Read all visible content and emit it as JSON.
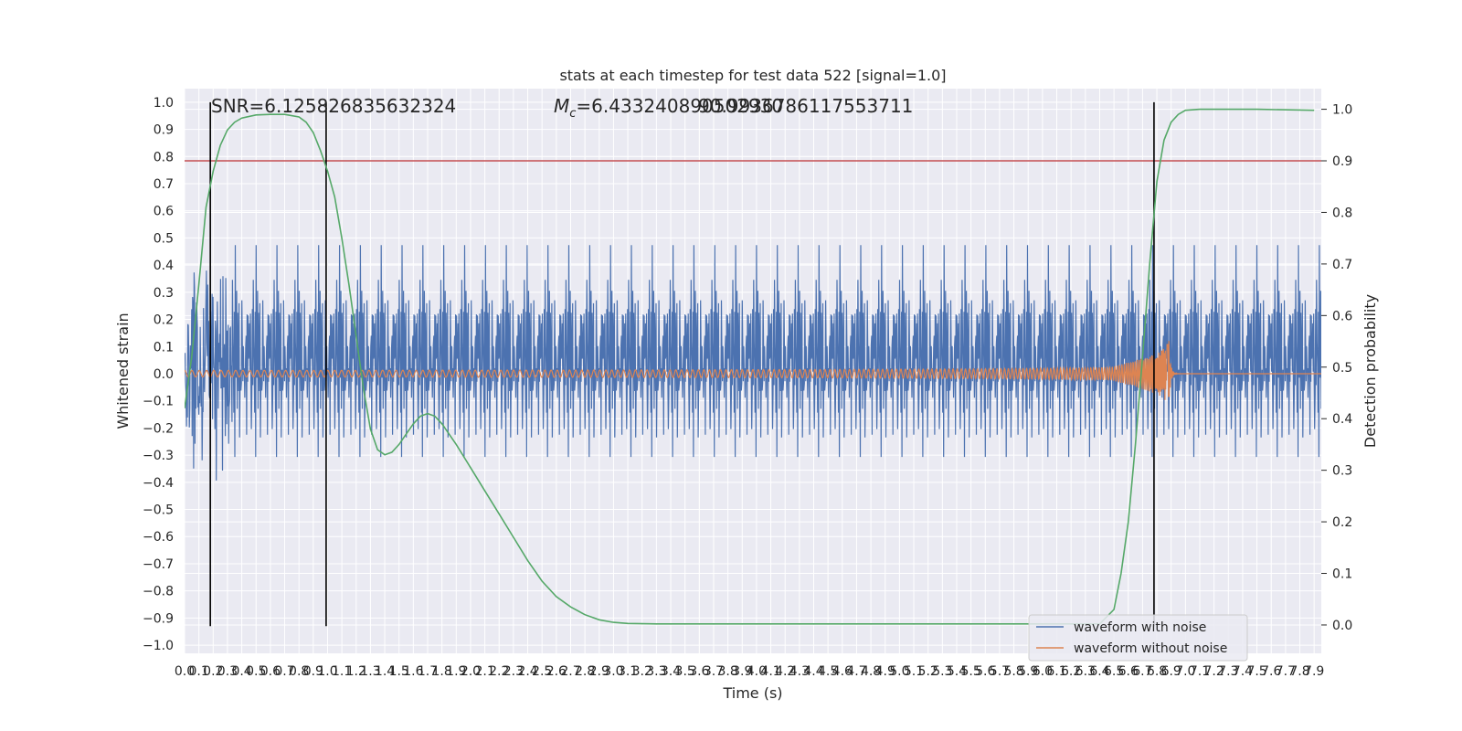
{
  "chart_data": {
    "type": "line",
    "title": "stats at each timestep for test data 522 [signal=1.0]",
    "xlabel": "Time (s)",
    "ylabel": "Whitened strain",
    "y2label": "Detection probability",
    "xlim": [
      0.0,
      7.95
    ],
    "ylim": [
      -1.03,
      1.05
    ],
    "y2lim": [
      -0.055,
      1.04
    ],
    "x_tick_step": 0.1,
    "x_tick_max": 7.9,
    "yticks": [
      -1.0,
      -0.9,
      -0.8,
      -0.7,
      -0.6,
      -0.5,
      -0.4,
      -0.3,
      -0.2,
      -0.1,
      0.0,
      0.1,
      0.2,
      0.3,
      0.4,
      0.5,
      0.6,
      0.7,
      0.8,
      0.9,
      1.0
    ],
    "y2ticks": [
      0.0,
      0.1,
      0.2,
      0.3,
      0.4,
      0.5,
      0.6,
      0.7,
      0.8,
      0.9,
      1.0
    ],
    "grid": true,
    "legend_position": "lower-right",
    "annotations": {
      "snr_text": "SNR=6.125826835632324",
      "mc_symbol": "M",
      "mc_subscript": "c",
      "mc_value": "=6.433240890502930",
      "overlap_value": "90.9936786117553711"
    },
    "threshold_line": {
      "axis": "y2",
      "value": 0.9,
      "color": "#c44e52"
    },
    "vertical_lines": [
      0.18,
      0.99,
      6.78
    ],
    "vertical_line_range": [
      -0.93,
      1.0
    ],
    "series": [
      {
        "name": "waveform with noise",
        "color": "#4c72b0",
        "kind": "noise",
        "amplitude_env": 0.33,
        "noise_seed": 522
      },
      {
        "name": "waveform without noise",
        "color": "#dd8452",
        "kind": "chirp",
        "merger_time": 6.88,
        "ringdown_end": 6.95
      },
      {
        "name": "Detection probability",
        "axis": "y2",
        "color": "#55a868",
        "points": [
          [
            0.0,
            0.42
          ],
          [
            0.05,
            0.52
          ],
          [
            0.1,
            0.66
          ],
          [
            0.15,
            0.81
          ],
          [
            0.2,
            0.88
          ],
          [
            0.25,
            0.93
          ],
          [
            0.3,
            0.96
          ],
          [
            0.35,
            0.975
          ],
          [
            0.4,
            0.983
          ],
          [
            0.5,
            0.989
          ],
          [
            0.6,
            0.99
          ],
          [
            0.7,
            0.99
          ],
          [
            0.8,
            0.985
          ],
          [
            0.85,
            0.975
          ],
          [
            0.9,
            0.955
          ],
          [
            0.95,
            0.92
          ],
          [
            1.0,
            0.88
          ],
          [
            1.05,
            0.83
          ],
          [
            1.1,
            0.75
          ],
          [
            1.15,
            0.66
          ],
          [
            1.2,
            0.56
          ],
          [
            1.25,
            0.46
          ],
          [
            1.3,
            0.38
          ],
          [
            1.35,
            0.34
          ],
          [
            1.4,
            0.33
          ],
          [
            1.45,
            0.335
          ],
          [
            1.5,
            0.35
          ],
          [
            1.55,
            0.37
          ],
          [
            1.6,
            0.39
          ],
          [
            1.65,
            0.405
          ],
          [
            1.7,
            0.41
          ],
          [
            1.75,
            0.405
          ],
          [
            1.8,
            0.39
          ],
          [
            1.9,
            0.35
          ],
          [
            2.0,
            0.305
          ],
          [
            2.1,
            0.26
          ],
          [
            2.2,
            0.215
          ],
          [
            2.3,
            0.17
          ],
          [
            2.4,
            0.125
          ],
          [
            2.5,
            0.085
          ],
          [
            2.6,
            0.055
          ],
          [
            2.7,
            0.035
          ],
          [
            2.8,
            0.02
          ],
          [
            2.9,
            0.01
          ],
          [
            3.0,
            0.005
          ],
          [
            3.1,
            0.003
          ],
          [
            3.3,
            0.002
          ],
          [
            4.0,
            0.002
          ],
          [
            5.0,
            0.002
          ],
          [
            6.0,
            0.002
          ],
          [
            6.4,
            0.002
          ],
          [
            6.5,
            0.03
          ],
          [
            6.55,
            0.1
          ],
          [
            6.6,
            0.2
          ],
          [
            6.65,
            0.35
          ],
          [
            6.7,
            0.52
          ],
          [
            6.75,
            0.7
          ],
          [
            6.8,
            0.86
          ],
          [
            6.85,
            0.94
          ],
          [
            6.9,
            0.975
          ],
          [
            6.95,
            0.99
          ],
          [
            7.0,
            0.998
          ],
          [
            7.1,
            1.0
          ],
          [
            7.5,
            1.0
          ],
          [
            7.9,
            0.998
          ]
        ]
      }
    ]
  }
}
